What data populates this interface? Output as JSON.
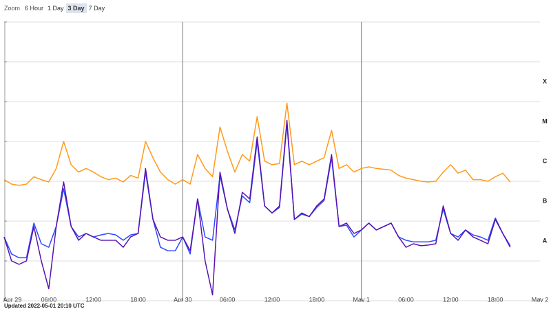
{
  "controls": {
    "label": "Zoom",
    "options": [
      "6 Hour",
      "1 Day",
      "3 Day",
      "7 Day"
    ],
    "selected": 2
  },
  "footer": {
    "updated": "Updated 2022-05-01 20:10 UTC"
  },
  "chart_data": {
    "type": "line",
    "log_y": true,
    "grid": true,
    "xlim": [
      "2022-04-29T00:00",
      "2022-05-02T00:00"
    ],
    "ylim": [
      1e-09,
      0.01
    ],
    "yticks": [
      1e-09,
      1e-08,
      1e-07,
      1e-06,
      1e-05,
      0.0001,
      0.001,
      0.01
    ],
    "xticks": [
      {
        "value": "2022-04-29T00:00",
        "label": "Apr 29"
      },
      {
        "value": "2022-04-29T06:00",
        "label": "06:00"
      },
      {
        "value": "2022-04-29T12:00",
        "label": "12:00"
      },
      {
        "value": "2022-04-29T18:00",
        "label": "18:00"
      },
      {
        "value": "2022-04-30T00:00",
        "label": "Apr 30"
      },
      {
        "value": "2022-04-30T06:00",
        "label": "06:00"
      },
      {
        "value": "2022-04-30T12:00",
        "label": "12:00"
      },
      {
        "value": "2022-04-30T18:00",
        "label": "18:00"
      },
      {
        "value": "2022-05-01T00:00",
        "label": "May 1"
      },
      {
        "value": "2022-05-01T06:00",
        "label": "06:00"
      },
      {
        "value": "2022-05-01T12:00",
        "label": "12:00"
      },
      {
        "value": "2022-05-01T18:00",
        "label": "18:00"
      },
      {
        "value": "2022-05-02T00:00",
        "label": "May 2"
      }
    ],
    "flare_classes": [
      {
        "label": "X",
        "value": 0.0001
      },
      {
        "label": "M",
        "value": 1e-05
      },
      {
        "label": "C",
        "value": 1e-06
      },
      {
        "label": "B",
        "value": 1e-07
      },
      {
        "label": "A",
        "value": 1e-08
      }
    ],
    "x": [
      "2022-04-29T00:00",
      "2022-04-29T01:00",
      "2022-04-29T02:00",
      "2022-04-29T03:00",
      "2022-04-29T04:00",
      "2022-04-29T05:00",
      "2022-04-29T06:00",
      "2022-04-29T07:00",
      "2022-04-29T08:00",
      "2022-04-29T09:00",
      "2022-04-29T10:00",
      "2022-04-29T11:00",
      "2022-04-29T12:00",
      "2022-04-29T13:00",
      "2022-04-29T14:00",
      "2022-04-29T15:00",
      "2022-04-29T16:00",
      "2022-04-29T17:00",
      "2022-04-29T18:00",
      "2022-04-29T19:00",
      "2022-04-29T20:00",
      "2022-04-29T21:00",
      "2022-04-29T22:00",
      "2022-04-29T23:00",
      "2022-04-30T00:00",
      "2022-04-30T01:00",
      "2022-04-30T02:00",
      "2022-04-30T03:00",
      "2022-04-30T04:00",
      "2022-04-30T05:00",
      "2022-04-30T06:00",
      "2022-04-30T07:00",
      "2022-04-30T08:00",
      "2022-04-30T09:00",
      "2022-04-30T10:00",
      "2022-04-30T11:00",
      "2022-04-30T12:00",
      "2022-04-30T13:00",
      "2022-04-30T14:00",
      "2022-04-30T15:00",
      "2022-04-30T16:00",
      "2022-04-30T17:00",
      "2022-04-30T18:00",
      "2022-04-30T19:00",
      "2022-04-30T20:00",
      "2022-04-30T21:00",
      "2022-04-30T22:00",
      "2022-04-30T23:00",
      "2022-05-01T00:00",
      "2022-05-01T01:00",
      "2022-05-01T02:00",
      "2022-05-01T03:00",
      "2022-05-01T04:00",
      "2022-05-01T05:00",
      "2022-05-01T06:00",
      "2022-05-01T07:00",
      "2022-05-01T08:00",
      "2022-05-01T09:00",
      "2022-05-01T10:00",
      "2022-05-01T11:00",
      "2022-05-01T12:00",
      "2022-05-01T13:00",
      "2022-05-01T14:00",
      "2022-05-01T15:00",
      "2022-05-01T16:00",
      "2022-05-01T17:00",
      "2022-05-01T18:00",
      "2022-05-01T19:00",
      "2022-05-01T20:00"
    ],
    "series": [
      {
        "color": "#ff9a1a",
        "values": [
          1.1e-06,
          8.5e-07,
          7.9e-07,
          8.5e-07,
          1.3e-06,
          1.1e-06,
          9.6e-07,
          2.1e-06,
          1e-05,
          2.6e-06,
          1.7e-06,
          2.1e-06,
          1.7e-06,
          1.3e-06,
          1.1e-06,
          1.2e-06,
          9.6e-07,
          1.4e-06,
          1.2e-06,
          1e-05,
          3.9e-06,
          1.7e-06,
          1.1e-06,
          8.5e-07,
          1.1e-06,
          8.5e-07,
          4.7e-06,
          2.1e-06,
          1.3e-06,
          2.3e-05,
          5.7e-06,
          1.7e-06,
          4.7e-06,
          3.2e-06,
          4.2e-05,
          3.2e-06,
          2.6e-06,
          2.8e-06,
          9.2e-05,
          2.6e-06,
          3.2e-06,
          2.6e-06,
          3.2e-06,
          3.9e-06,
          1.9e-05,
          2.1e-06,
          2.6e-06,
          1.7e-06,
          2.1e-06,
          2.3e-06,
          2.1e-06,
          2e-06,
          1.9e-06,
          1.4e-06,
          1.2e-06,
          1.1e-06,
          1e-06,
          9.6e-07,
          1e-06,
          1.7e-06,
          2.6e-06,
          1.6e-06,
          1.9e-06,
          1.1e-06,
          1.1e-06,
          1e-06,
          1.3e-06,
          1.6e-06,
          9.6e-07
        ]
      },
      {
        "color": "#2a4bff",
        "values": [
          4e-08,
          1.5e-08,
          1.2e-08,
          1.2e-08,
          8.9e-08,
          2.7e-08,
          2.2e-08,
          7.3e-08,
          6.5e-07,
          7.3e-08,
          4e-08,
          4.9e-08,
          4e-08,
          4.5e-08,
          4.9e-08,
          4.5e-08,
          3.3e-08,
          4.5e-08,
          4.9e-08,
          1.7e-06,
          1.1e-07,
          2.2e-08,
          1.8e-08,
          1.8e-08,
          4e-08,
          1.5e-08,
          3.6e-07,
          4e-08,
          3.3e-08,
          1.4e-06,
          2e-07,
          6e-08,
          4.3e-07,
          2.9e-07,
          1e-05,
          2.4e-07,
          1.6e-07,
          2.2e-07,
          2.8e-05,
          1.1e-07,
          1.5e-07,
          1.3e-07,
          2.2e-07,
          3.3e-07,
          3.9e-06,
          7.3e-08,
          7.9e-08,
          4e-08,
          6e-08,
          8.9e-08,
          6e-08,
          7.3e-08,
          8.9e-08,
          4e-08,
          3.3e-08,
          3e-08,
          3e-08,
          3e-08,
          3.3e-08,
          2e-07,
          4.9e-08,
          4e-08,
          6e-08,
          4.5e-08,
          4e-08,
          3.3e-08,
          1.2e-07,
          4.9e-08,
          2.4e-08
        ]
      },
      {
        "color": "#5a12b0",
        "values": [
          4e-08,
          1e-08,
          8.2e-09,
          1e-08,
          7.3e-08,
          1e-08,
          2e-09,
          7.3e-08,
          9.6e-07,
          7.3e-08,
          3.3e-08,
          4.9e-08,
          4e-08,
          3.3e-08,
          3.3e-08,
          3.3e-08,
          2.2e-08,
          4e-08,
          4.9e-08,
          2.1e-06,
          1.1e-07,
          4e-08,
          3.3e-08,
          3.3e-08,
          4e-08,
          1.8e-08,
          3.6e-07,
          1e-08,
          1.4e-09,
          1.7e-06,
          2e-07,
          4.9e-08,
          5.3e-07,
          3.6e-07,
          1.3e-05,
          2.4e-07,
          1.6e-07,
          2.4e-07,
          3.4e-05,
          1.1e-07,
          1.6e-07,
          1.3e-07,
          2.4e-07,
          3.6e-07,
          4.7e-06,
          7.3e-08,
          8.9e-08,
          4.9e-08,
          6e-08,
          8.9e-08,
          6e-08,
          7.3e-08,
          8.9e-08,
          4e-08,
          2.2e-08,
          2.7e-08,
          2.4e-08,
          2.5e-08,
          2.7e-08,
          2.4e-07,
          4.9e-08,
          3.3e-08,
          6e-08,
          4e-08,
          3.3e-08,
          2.7e-08,
          1.1e-07,
          4.9e-08,
          2.2e-08
        ]
      }
    ]
  }
}
